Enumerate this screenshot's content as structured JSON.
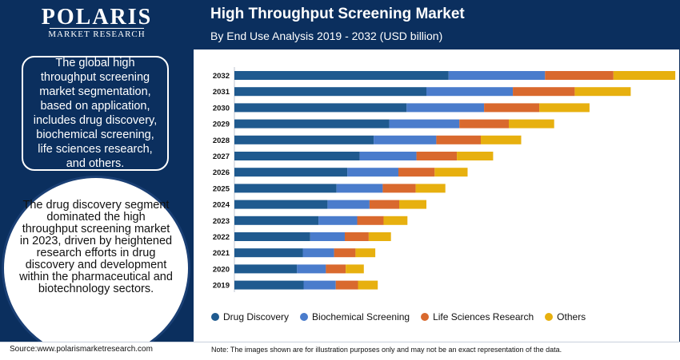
{
  "brand": {
    "logo": "POLARIS",
    "tagline": "MARKET RESEARCH"
  },
  "panel": {
    "box_text": "The global high throughput screening market segmentation, based on application, includes drug discovery, biochemical screening, life sciences research, and others.",
    "circle_text": "The drug discovery segment dominated the high throughput screening market in 2023, driven by heightened research efforts in drug discovery and development within the pharmaceutical and biotechnology sectors."
  },
  "footer": {
    "source": "Source:www.polarismarketresearch.com",
    "note": "Note: The images shown are for illustration purposes only and may not be an exact representation of the data."
  },
  "chart_data": {
    "type": "bar",
    "orientation": "horizontal",
    "stacked": true,
    "title": "High Throughput Screening Market",
    "subtitle": "By End Use Analysis 2019 - 2032 (USD billion)",
    "categories": [
      "2032",
      "2031",
      "2030",
      "2029",
      "2028",
      "2027",
      "2026",
      "2025",
      "2024",
      "2023",
      "2022",
      "2021",
      "2020",
      "2019"
    ],
    "series": [
      {
        "name": "Drug Discovery",
        "color": "#1f5a8f",
        "values": [
          26.0,
          23.3,
          20.9,
          18.8,
          16.9,
          15.2,
          13.7,
          12.4,
          11.3,
          10.2,
          9.2,
          8.3,
          7.6,
          8.4
        ]
      },
      {
        "name": "Biochemical Screening",
        "color": "#4a7ccc",
        "values": [
          11.7,
          10.5,
          9.4,
          8.5,
          7.6,
          6.9,
          6.2,
          5.6,
          5.1,
          4.7,
          4.2,
          3.8,
          3.5,
          3.9
        ]
      },
      {
        "name": "Life Sciences Research",
        "color": "#d9692e",
        "values": [
          8.3,
          7.5,
          6.7,
          6.0,
          5.4,
          4.9,
          4.4,
          4.0,
          3.6,
          3.2,
          2.9,
          2.6,
          2.4,
          2.7
        ]
      },
      {
        "name": "Others",
        "color": "#e7b00f",
        "values": [
          7.5,
          6.8,
          6.1,
          5.5,
          4.9,
          4.4,
          4.0,
          3.6,
          3.3,
          2.9,
          2.7,
          2.4,
          2.2,
          2.4
        ]
      }
    ],
    "grid": false,
    "legend_position": "bottom"
  }
}
